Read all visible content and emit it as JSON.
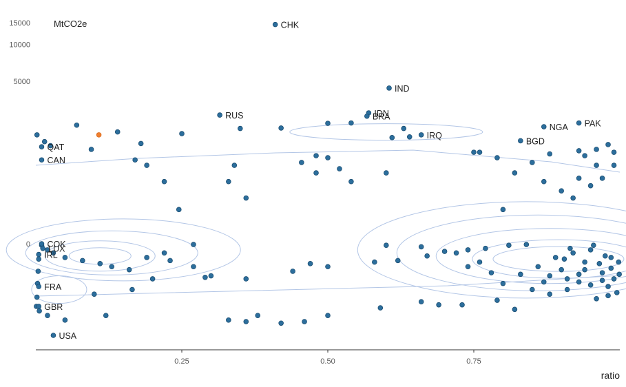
{
  "chart_data": {
    "type": "scatter",
    "ylabel": "MtCO2e",
    "xlabel": "ratio",
    "xlim": [
      0,
      1
    ],
    "xticks": [
      "0.25",
      "0.50",
      "0.75"
    ],
    "y_axis_scale": "pseudo-log (symmetric)",
    "yticks": [
      "15000",
      "10000",
      "5000",
      "0"
    ],
    "grid": false,
    "overlay": "2D density contours",
    "point_color": "#2c6e9c",
    "highlight_color": "#f07f2e",
    "contour_color": "#b3c6e6",
    "labeled_points": [
      {
        "label": "CHK",
        "x": 0.41,
        "y": 14500
      },
      {
        "label": "IND",
        "x": 0.605,
        "y": 3500
      },
      {
        "label": "IDN",
        "x": 0.57,
        "y": 950
      },
      {
        "label": "BRA",
        "x": 0.567,
        "y": 800
      },
      {
        "label": "RUS",
        "x": 0.315,
        "y": 850
      },
      {
        "label": "IRQ",
        "x": 0.66,
        "y": 300
      },
      {
        "label": "NGA",
        "x": 0.87,
        "y": 460
      },
      {
        "label": "PAK",
        "x": 0.93,
        "y": 560
      },
      {
        "label": "BGD",
        "x": 0.83,
        "y": 220
      },
      {
        "label": "QAT",
        "x": 0.01,
        "y": 160
      },
      {
        "label": "CAN",
        "x": 0.01,
        "y": 80
      },
      {
        "label": "COK",
        "x": 0.01,
        "y": 0
      },
      {
        "label": "LUX",
        "x": 0.012,
        "y": -30
      },
      {
        "label": "IRL",
        "x": 0.005,
        "y": -70
      },
      {
        "label": "FRA",
        "x": 0.005,
        "y": -280
      },
      {
        "label": "GBR",
        "x": 0.005,
        "y": -410
      },
      {
        "label": "USA",
        "x": 0.03,
        "y": -600
      }
    ],
    "highlight_point": {
      "x": 0.108,
      "y": 300
    },
    "points": [
      [
        0.07,
        500
      ],
      [
        0.14,
        350
      ],
      [
        0.25,
        320
      ],
      [
        0.35,
        420
      ],
      [
        0.42,
        430
      ],
      [
        0.5,
        550
      ],
      [
        0.54,
        560
      ],
      [
        0.63,
        420
      ],
      [
        0.64,
        270
      ],
      [
        0.61,
        260
      ],
      [
        0.002,
        300
      ],
      [
        0.015,
        210
      ],
      [
        0.025,
        170
      ],
      [
        0.095,
        140
      ],
      [
        0.18,
        190
      ],
      [
        0.17,
        80
      ],
      [
        0.19,
        60
      ],
      [
        0.22,
        25
      ],
      [
        0.245,
        5
      ],
      [
        0.27,
        -5
      ],
      [
        0.34,
        60
      ],
      [
        0.33,
        25
      ],
      [
        0.36,
        10
      ],
      [
        0.455,
        70
      ],
      [
        0.48,
        100
      ],
      [
        0.5,
        90
      ],
      [
        0.48,
        40
      ],
      [
        0.52,
        50
      ],
      [
        0.54,
        25
      ],
      [
        0.6,
        40
      ],
      [
        0.75,
        120
      ],
      [
        0.76,
        120
      ],
      [
        0.79,
        90
      ],
      [
        0.82,
        40
      ],
      [
        0.85,
        70
      ],
      [
        0.88,
        110
      ],
      [
        0.93,
        130
      ],
      [
        0.94,
        100
      ],
      [
        0.96,
        140
      ],
      [
        0.98,
        180
      ],
      [
        0.99,
        60
      ],
      [
        0.97,
        30
      ],
      [
        0.95,
        20
      ],
      [
        0.92,
        10
      ],
      [
        0.9,
        15
      ],
      [
        0.87,
        25
      ],
      [
        0.84,
        -5
      ],
      [
        0.81,
        -10
      ],
      [
        0.8,
        5
      ],
      [
        0.77,
        -30
      ],
      [
        0.74,
        -40
      ],
      [
        0.72,
        -60
      ],
      [
        0.7,
        -50
      ],
      [
        0.66,
        -20
      ],
      [
        0.67,
        -80
      ],
      [
        0.62,
        -110
      ],
      [
        0.6,
        -10
      ],
      [
        0.58,
        -120
      ],
      [
        0.5,
        -150
      ],
      [
        0.47,
        -130
      ],
      [
        0.44,
        -180
      ],
      [
        0.36,
        -230
      ],
      [
        0.3,
        -210
      ],
      [
        0.29,
        -220
      ],
      [
        0.27,
        -150
      ],
      [
        0.22,
        -60
      ],
      [
        0.23,
        -110
      ],
      [
        0.19,
        -90
      ],
      [
        0.16,
        -170
      ],
      [
        0.13,
        -150
      ],
      [
        0.11,
        -130
      ],
      [
        0.08,
        -110
      ],
      [
        0.05,
        -90
      ],
      [
        0.03,
        -60
      ],
      [
        0.02,
        -40
      ],
      [
        0.01,
        -10
      ],
      [
        0.005,
        -100
      ],
      [
        0.004,
        -180
      ],
      [
        0.003,
        -260
      ],
      [
        0.002,
        -350
      ],
      [
        0.001,
        -410
      ],
      [
        0.006,
        -440
      ],
      [
        0.02,
        -470
      ],
      [
        0.05,
        -500
      ],
      [
        0.1,
        -330
      ],
      [
        0.12,
        -470
      ],
      [
        0.165,
        -300
      ],
      [
        0.2,
        -230
      ],
      [
        0.33,
        -500
      ],
      [
        0.36,
        -510
      ],
      [
        0.38,
        -470
      ],
      [
        0.42,
        -520
      ],
      [
        0.46,
        -510
      ],
      [
        0.5,
        -470
      ],
      [
        0.59,
        -420
      ],
      [
        0.66,
        -380
      ],
      [
        0.69,
        -400
      ],
      [
        0.73,
        -400
      ],
      [
        0.79,
        -370
      ],
      [
        0.82,
        -430
      ],
      [
        0.88,
        -330
      ],
      [
        0.91,
        -300
      ],
      [
        0.93,
        -250
      ],
      [
        0.95,
        -270
      ],
      [
        0.96,
        -360
      ],
      [
        0.98,
        -340
      ],
      [
        0.99,
        -230
      ],
      [
        0.97,
        -190
      ],
      [
        0.94,
        -120
      ],
      [
        0.9,
        -170
      ],
      [
        0.86,
        -150
      ],
      [
        0.83,
        -200
      ],
      [
        0.8,
        -260
      ],
      [
        0.78,
        -190
      ],
      [
        0.76,
        -120
      ],
      [
        0.74,
        -150
      ],
      [
        0.89,
        -90
      ],
      [
        0.92,
        -60
      ],
      [
        0.95,
        -40
      ],
      [
        0.985,
        -90
      ],
      [
        0.998,
        -120
      ],
      [
        0.999,
        -200
      ],
      [
        0.97,
        -240
      ],
      [
        0.98,
        -280
      ],
      [
        0.995,
        -320
      ],
      [
        0.91,
        -230
      ],
      [
        0.87,
        -250
      ],
      [
        0.85,
        -300
      ],
      [
        0.88,
        -210
      ],
      [
        0.93,
        -200
      ],
      [
        0.94,
        -170
      ],
      [
        0.965,
        -130
      ],
      [
        0.985,
        -160
      ],
      [
        0.975,
        -80
      ],
      [
        0.955,
        -10
      ],
      [
        0.915,
        -30
      ],
      [
        0.905,
        -100
      ],
      [
        0.93,
        30
      ],
      [
        0.96,
        60
      ],
      [
        0.99,
        120
      ]
    ]
  }
}
